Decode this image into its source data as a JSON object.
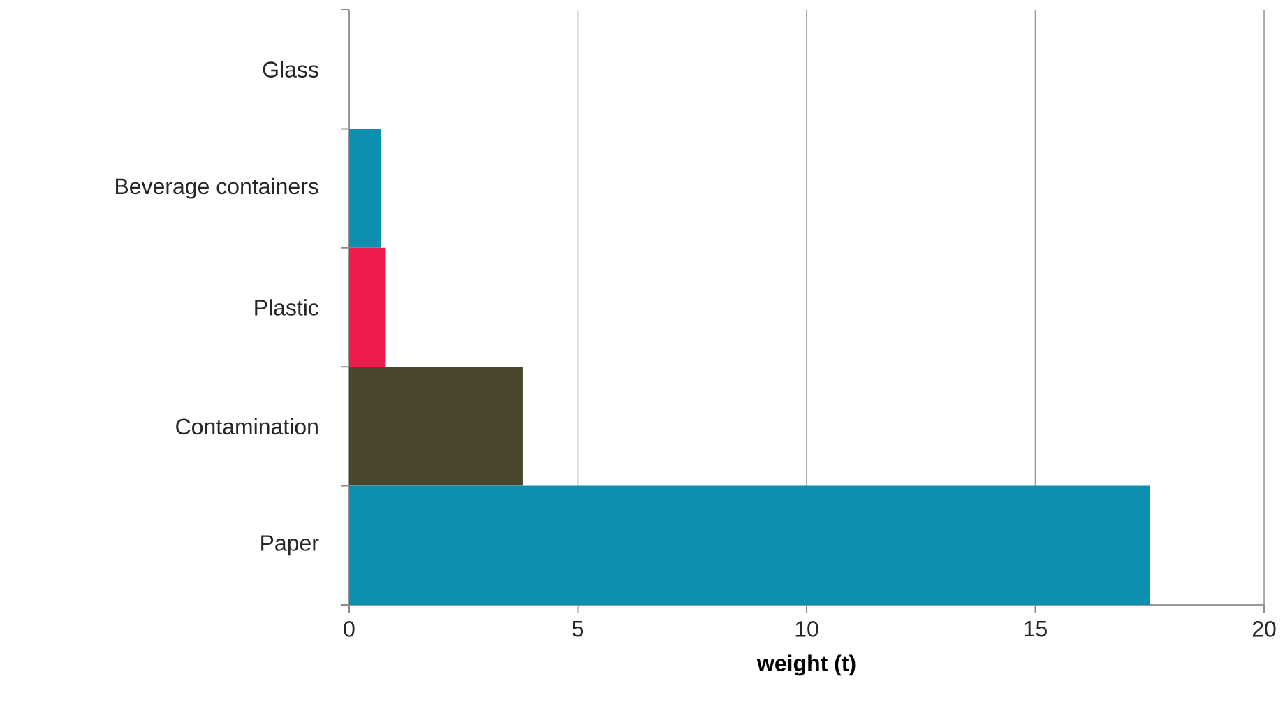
{
  "chart_data": {
    "type": "bar",
    "orientation": "horizontal",
    "xlabel": "weight (t)",
    "categories": [
      "Glass",
      "Beverage containers",
      "Plastic",
      "Contamination",
      "Paper"
    ],
    "values": [
      0,
      0.7,
      0.8,
      3.8,
      17.5
    ],
    "colors": [
      "#a6a6a6",
      "#0e8fb0",
      "#ef1a4e",
      "#4a452d",
      "#0e8fb0"
    ],
    "xlim": [
      0,
      20
    ],
    "xticks": [
      0,
      5,
      10,
      15,
      20
    ],
    "grid": "x"
  }
}
